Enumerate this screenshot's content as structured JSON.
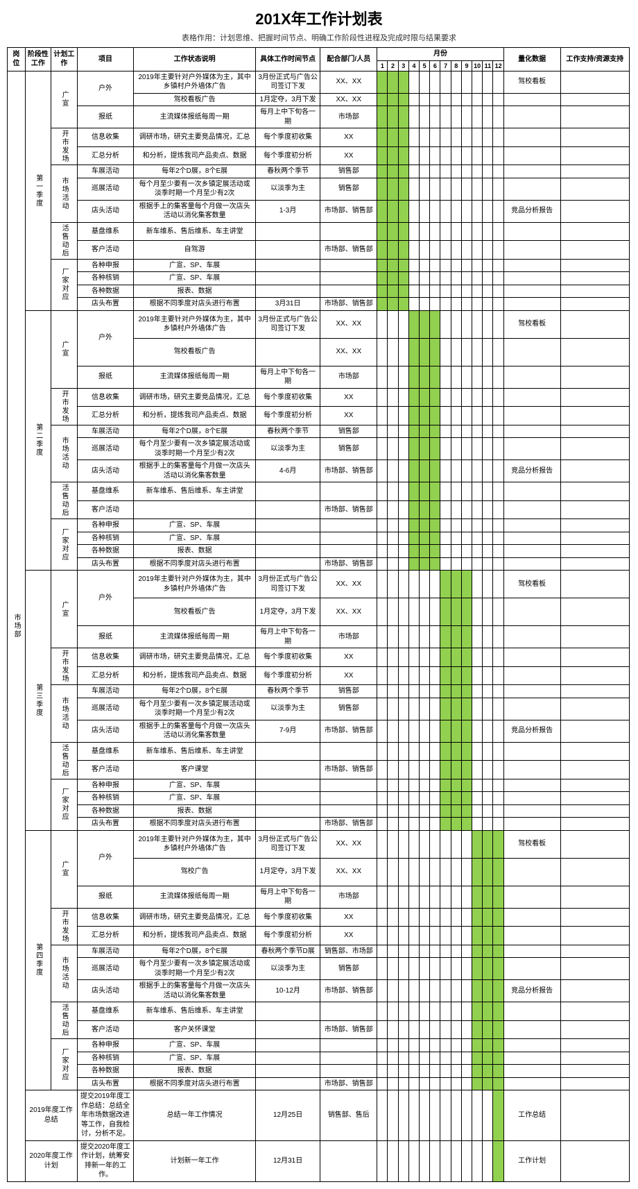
{
  "title": "201X年工作计划表",
  "subtitle": "表格作用：计划思维、把握时间节点、明确工作阶段性进程及完成时限与结果要求",
  "headers": {
    "gangwei": "岗位",
    "jieduan": "阶段性工作",
    "jihua": "计划工作",
    "xiangmu": "项目",
    "shuoming": "工作状态说明",
    "jiedian": "具体工作时间节点",
    "peihe": "配合部门/人员",
    "yuefen": "月份",
    "lianghua": "量化数据",
    "zhichi": "工作支持/资源支持"
  },
  "months": [
    "1",
    "2",
    "3",
    "4",
    "5",
    "6",
    "7",
    "8",
    "9",
    "10",
    "11",
    "12"
  ],
  "gangwei": "市场部",
  "quarters": [
    {
      "label": "第一季度",
      "greenMonths": [
        1,
        2,
        3
      ],
      "groups": [
        {
          "jihua": "广宣",
          "items": [
            {
              "xiangmu": "户外",
              "rowspan": 2,
              "shuoming": "2019年主要针对户外媒体为主，其中乡镇村户外墙体广告",
              "jiedian": "3月份正式与广告公司签订下发",
              "peihe": "XX、XX",
              "liang": "驾校看板",
              "green": [
                1,
                2,
                3
              ]
            },
            {
              "shuoming": "驾校看板广告",
              "jiedian": "1月定夺，3月下发",
              "peihe": "XX、XX",
              "green": [
                1,
                2,
                3
              ]
            },
            {
              "xiangmu": "报纸",
              "shuoming": "主流媒体报纸每周一期",
              "jiedian": "每月上中下旬各一期",
              "peihe": "市场部",
              "green": [
                1,
                2,
                3
              ]
            }
          ]
        },
        {
          "jihua": "开市发场",
          "items": [
            {
              "xiangmu": "信息收集",
              "shuoming": "调研市场，研究主要竞品情况，汇总",
              "jiedian": "每个季度初收集",
              "peihe": "XX",
              "green": [
                1,
                2,
                3
              ],
              "shuomingSpan": 2
            },
            {
              "xiangmu": "汇总分析",
              "shuoming": "和分析，提炼我司产品卖点、数据",
              "jiedian": "每个季度初分析",
              "peihe": "XX",
              "green": [
                1,
                2,
                3
              ]
            }
          ]
        },
        {
          "jihua": "市场活动",
          "items": [
            {
              "xiangmu": "车展活动",
              "shuoming": "每年2个D展，8个E展",
              "jiedian": "春秋两个季节",
              "peihe": "销售部",
              "green": [
                1,
                2,
                3
              ]
            },
            {
              "xiangmu": "巡展活动",
              "shuoming": "每个月至少要有一次乡镇定展活动或淡季时期一个月至少有2次",
              "jiedian": "以淡季为主",
              "peihe": "销售部",
              "green": [
                1,
                2,
                3
              ]
            },
            {
              "xiangmu": "店头活动",
              "shuoming": "根据手上的集客量每个月做一次店头活动以消化集客数量",
              "jiedian": "1-3月",
              "peihe": "市场部、销售部",
              "liang": "竞品分析报告",
              "green": [
                1,
                2,
                3
              ]
            }
          ]
        },
        {
          "jihua": "活售动后",
          "items": [
            {
              "xiangmu": "基盘维系",
              "shuoming": "新车维系、售后维系、车主讲堂",
              "green": [
                1,
                2,
                3
              ]
            },
            {
              "xiangmu": "客户活动",
              "shuoming": "自驾游",
              "peihe": "市场部、销售部",
              "green": [
                1,
                2,
                3
              ]
            }
          ]
        },
        {
          "jihua": "厂家对应",
          "items": [
            {
              "xiangmu": "各种申报",
              "shuoming": "广宣、SP、车展",
              "green": [
                1,
                2,
                3
              ]
            },
            {
              "xiangmu": "各种核销",
              "shuoming": "广宣、SP、车展",
              "green": [
                1,
                2,
                3
              ]
            },
            {
              "xiangmu": "各种数据",
              "shuoming": "报表、数据",
              "green": [
                1,
                2,
                3
              ]
            },
            {
              "xiangmu": "店头布置",
              "shuoming": "根据不同季度对店头进行布置",
              "jiedian": "3月31日",
              "peihe": "市场部、销售部",
              "green": [
                1,
                2,
                3
              ]
            }
          ]
        }
      ]
    },
    {
      "label": "第二季度",
      "greenMonths": [
        4,
        5,
        6
      ],
      "groups": [
        {
          "jihua": "广宣",
          "items": [
            {
              "xiangmu": "户外",
              "rowspan": 2,
              "shuoming": "2019年主要针对户外媒体为主，其中乡镇村户外墙体广告",
              "jiedian": "3月份正式与广告公司签订下发",
              "peihe": "XX、XX",
              "liang": "驾校看板",
              "green": [
                4,
                5,
                6
              ],
              "tall": true
            },
            {
              "shuoming": "驾校看板广告",
              "peihe": "XX、XX",
              "green": [
                4,
                5,
                6
              ],
              "tall": true
            },
            {
              "xiangmu": "报纸",
              "shuoming": "主流媒体报纸每周一期",
              "jiedian": "每月上中下旬各一期",
              "peihe": "市场部",
              "green": [
                4,
                5,
                6
              ]
            }
          ]
        },
        {
          "jihua": "开市发场",
          "items": [
            {
              "xiangmu": "信息收集",
              "shuoming": "调研市场，研究主要竞品情况，汇总",
              "jiedian": "每个季度初收集",
              "peihe": "XX",
              "green": [
                4,
                5,
                6
              ],
              "shuomingSpan": 2
            },
            {
              "xiangmu": "汇总分析",
              "shuoming": "和分析，提炼我司产品卖点、数据",
              "jiedian": "每个季度初分析",
              "peihe": "XX",
              "green": [
                4,
                5,
                6
              ]
            }
          ]
        },
        {
          "jihua": "市场活动",
          "items": [
            {
              "xiangmu": "车展活动",
              "shuoming": "每年2个D展，8个E展",
              "jiedian": "春秋两个季节",
              "peihe": "销售部",
              "green": [
                4,
                5,
                6
              ]
            },
            {
              "xiangmu": "巡展活动",
              "shuoming": "每个月至少要有一次乡镇定展活动或淡季时期一个月至少有2次",
              "jiedian": "以淡季为主",
              "peihe": "销售部",
              "green": [
                4,
                5,
                6
              ]
            },
            {
              "xiangmu": "店头活动",
              "shuoming": "根据手上的集客量每个月做一次店头活动以消化集客数量",
              "jiedian": "4-6月",
              "peihe": "市场部、销售部",
              "liang": "竞品分析报告",
              "green": [
                4,
                5,
                6
              ]
            }
          ]
        },
        {
          "jihua": "活售动后",
          "items": [
            {
              "xiangmu": "基盘维系",
              "shuoming": "新车维系、售后维系、车主讲堂",
              "green": [
                4,
                5,
                6
              ]
            },
            {
              "xiangmu": "客户活动",
              "peihe": "市场部、销售部",
              "green": [
                4,
                5,
                6
              ]
            }
          ]
        },
        {
          "jihua": "厂家对应",
          "items": [
            {
              "xiangmu": "各种申报",
              "shuoming": "广宣、SP、车展",
              "green": [
                4,
                5,
                6
              ]
            },
            {
              "xiangmu": "各种核销",
              "shuoming": "广宣、SP、车展",
              "green": [
                4,
                5,
                6
              ]
            },
            {
              "xiangmu": "各种数据",
              "shuoming": "报表、数据",
              "green": [
                4,
                5,
                6
              ]
            },
            {
              "xiangmu": "店头布置",
              "shuoming": "根据不同季度对店头进行布置",
              "peihe": "市场部、销售部",
              "green": [
                4,
                5,
                6
              ]
            }
          ]
        }
      ]
    },
    {
      "label": "第三季度",
      "greenMonths": [
        7,
        8,
        9
      ],
      "groups": [
        {
          "jihua": "广宣",
          "items": [
            {
              "xiangmu": "户外",
              "rowspan": 2,
              "shuoming": "2019年主要针对户外媒体为主，其中乡镇村户外墙体广告",
              "jiedian": "3月份正式与广告公司签订下发",
              "peihe": "XX、XX",
              "liang": "驾校看板",
              "green": [
                7,
                8,
                9
              ],
              "tall": true
            },
            {
              "shuoming": "驾校看板广告",
              "jiedian": "1月定夺，3月下发",
              "peihe": "XX、XX",
              "green": [
                7,
                8,
                9
              ],
              "tall": true
            },
            {
              "xiangmu": "报纸",
              "shuoming": "主流媒体报纸每周一期",
              "jiedian": "每月上中下旬各一期",
              "peihe": "市场部",
              "green": [
                7,
                8,
                9
              ]
            }
          ]
        },
        {
          "jihua": "开市发场",
          "items": [
            {
              "xiangmu": "信息收集",
              "shuoming": "调研市场，研究主要竞品情况，汇总",
              "jiedian": "每个季度初收集",
              "peihe": "XX",
              "green": [
                7,
                8,
                9
              ],
              "shuomingSpan": 2
            },
            {
              "xiangmu": "汇总分析",
              "shuoming": "和分析，提炼我司产品卖点、数据",
              "jiedian": "每个季度初分析",
              "peihe": "XX",
              "green": [
                7,
                8,
                9
              ]
            }
          ]
        },
        {
          "jihua": "市场活动",
          "items": [
            {
              "xiangmu": "车展活动",
              "shuoming": "每年2个D展，8个E展",
              "jiedian": "春秋两个季节",
              "peihe": "销售部",
              "green": [
                7,
                8,
                9
              ]
            },
            {
              "xiangmu": "巡展活动",
              "shuoming": "每个月至少要有一次乡镇定展活动或淡季时期一个月至少有2次",
              "jiedian": "以淡季为主",
              "peihe": "销售部",
              "green": [
                7,
                8,
                9
              ]
            },
            {
              "xiangmu": "店头活动",
              "shuoming": "根据手上的集客量每个月做一次店头活动以消化集客数量",
              "jiedian": "7-9月",
              "peihe": "市场部、销售部",
              "liang": "竞品分析报告",
              "green": [
                7,
                8,
                9
              ]
            }
          ]
        },
        {
          "jihua": "活售动后",
          "items": [
            {
              "xiangmu": "基盘维系",
              "shuoming": "新车维系、售后维系、车主讲堂",
              "green": [
                7,
                8,
                9
              ]
            },
            {
              "xiangmu": "客户活动",
              "shuoming": "客户课堂",
              "peihe": "市场部、销售部",
              "green": [
                7,
                8,
                9
              ]
            }
          ]
        },
        {
          "jihua": "厂家对应",
          "items": [
            {
              "xiangmu": "各种申报",
              "shuoming": "广宣、SP、车展",
              "green": [
                7,
                8,
                9
              ]
            },
            {
              "xiangmu": "各种核销",
              "shuoming": "广宣、SP、车展",
              "green": [
                7,
                8,
                9
              ]
            },
            {
              "xiangmu": "各种数据",
              "shuoming": "报表、数据",
              "green": [
                7,
                8,
                9
              ]
            },
            {
              "xiangmu": "店头布置",
              "shuoming": "根据不同季度对店头进行布置",
              "peihe": "市场部、销售部",
              "green": [
                7,
                8,
                9
              ]
            }
          ]
        }
      ]
    },
    {
      "label": "第四季度",
      "greenMonths": [
        10,
        11,
        12
      ],
      "groups": [
        {
          "jihua": "广宣",
          "items": [
            {
              "xiangmu": "户外",
              "rowspan": 2,
              "shuoming": "2019年主要针对户外媒体为主，其中乡镇村户外墙体广告",
              "jiedian": "3月份正式与广告公司签订下发",
              "peihe": "XX、XX",
              "liang": "驾校看板",
              "green": [
                10,
                11,
                12
              ],
              "tall": true
            },
            {
              "shuoming": "驾校广告",
              "jiedian": "1月定夺，3月下发",
              "peihe": "XX、XX",
              "green": [
                10,
                11,
                12
              ],
              "tall": true
            },
            {
              "xiangmu": "报纸",
              "shuoming": "主流媒体报纸每周一期",
              "jiedian": "每月上中下旬各一期",
              "peihe": "市场部",
              "green": [
                10,
                11,
                12
              ]
            }
          ]
        },
        {
          "jihua": "开市发场",
          "items": [
            {
              "xiangmu": "信息收集",
              "shuoming": "调研市场，研究主要竞品情况，汇总",
              "jiedian": "每个季度初收集",
              "peihe": "XX",
              "green": [
                10,
                11,
                12
              ],
              "shuomingSpan": 2
            },
            {
              "xiangmu": "汇总分析",
              "shuoming": "和分析，提炼我司产品卖点、数据",
              "jiedian": "每个季度初分析",
              "peihe": "XX",
              "green": [
                10,
                11,
                12
              ]
            }
          ]
        },
        {
          "jihua": "市场活动",
          "items": [
            {
              "xiangmu": "车展活动",
              "shuoming": "每年2个D展，8个E展",
              "jiedian": "春秋两个季节D展",
              "peihe": "销售部、市场部",
              "green": [
                10,
                11,
                12
              ]
            },
            {
              "xiangmu": "巡展活动",
              "shuoming": "每个月至少要有一次乡镇定展活动或淡季时期一个月至少有2次",
              "jiedian": "以淡季为主",
              "peihe": "销售部",
              "green": [
                10,
                11,
                12
              ]
            },
            {
              "xiangmu": "店头活动",
              "shuoming": "根据手上的集客量每个月做一次店头活动以消化集客数量",
              "jiedian": "10-12月",
              "peihe": "市场部、销售部",
              "liang": "竞品分析报告",
              "green": [
                10,
                11,
                12
              ]
            }
          ]
        },
        {
          "jihua": "活售动后",
          "items": [
            {
              "xiangmu": "基盘维系",
              "shuoming": "新车维系、售后维系、车主讲堂",
              "green": [
                10,
                11,
                12
              ]
            },
            {
              "xiangmu": "客户活动",
              "shuoming": "客户关怀课堂",
              "peihe": "市场部、销售部",
              "green": [
                10,
                11,
                12
              ]
            }
          ]
        },
        {
          "jihua": "厂家对应",
          "items": [
            {
              "xiangmu": "各种申报",
              "shuoming": "广宣、SP、车展",
              "green": [
                10,
                11,
                12
              ]
            },
            {
              "xiangmu": "各种核销",
              "shuoming": "广宣、SP、车展",
              "green": [
                10,
                11,
                12
              ]
            },
            {
              "xiangmu": "各种数据",
              "shuoming": "报表、数据",
              "green": [
                10,
                11,
                12
              ]
            },
            {
              "xiangmu": "店头布置",
              "shuoming": "根据不同季度对店头进行布置",
              "peihe": "市场部、销售部",
              "green": [
                10,
                11,
                12
              ]
            }
          ]
        }
      ]
    }
  ],
  "footerRows": [
    {
      "jieduan": "2019年度工作总结",
      "xiangmu": "提交2019年度工作总结：总结全年市场数据改进等工作，自我检讨，分析不足。",
      "shuoming": "总结一年工作情况",
      "jiedian": "12月25日",
      "peihe": "销售部、售后",
      "liang": "工作总结",
      "green": [
        12
      ]
    },
    {
      "jieduan": "2020年度工作计划",
      "xiangmu": "提交2020年度工作计划，统筹安排新一年的工作。",
      "shuoming": "计划新一年工作",
      "jiedian": "12月31日",
      "liang": "工作计划",
      "green": [
        12
      ]
    }
  ],
  "colors": {
    "green": "#92d050"
  }
}
